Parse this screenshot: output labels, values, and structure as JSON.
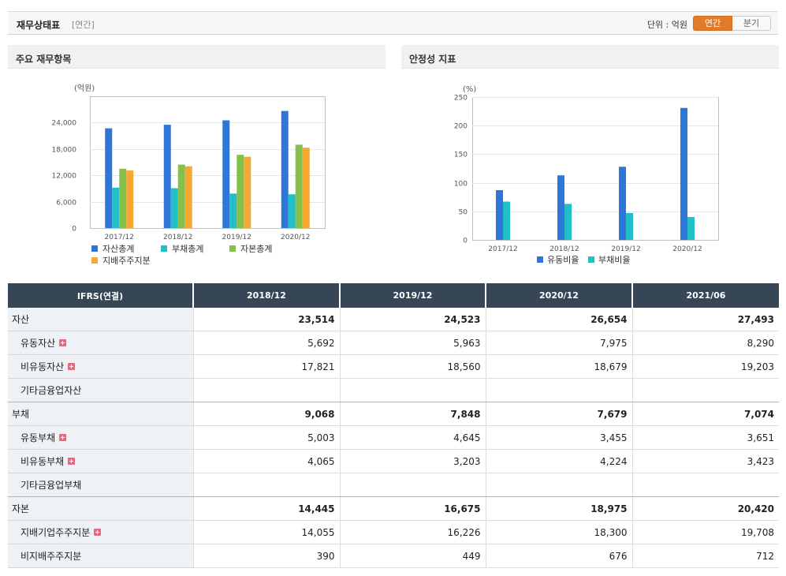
{
  "header": {
    "title": "재무상태표",
    "subtitle": "[연간]",
    "unit_label": "단위 : 억원",
    "toggle_annual": "연간",
    "toggle_quarter": "분기"
  },
  "left_panel": {
    "title": "주요 재무항목"
  },
  "right_panel": {
    "title": "안정성 지표"
  },
  "chart_data": [
    {
      "type": "bar",
      "ylabel": "(억원)",
      "categories": [
        "2017/12",
        "2018/12",
        "2019/12",
        "2020/12"
      ],
      "ylim": [
        0,
        30000
      ],
      "yticks": [
        0,
        6000,
        12000,
        18000,
        24000
      ],
      "ytick_labels": [
        "0",
        "6,000",
        "12,000",
        "18,000",
        "24,000"
      ],
      "series": [
        {
          "name": "자산총계",
          "color": "#2f77d6",
          "values": [
            22700,
            23514,
            24523,
            26654
          ]
        },
        {
          "name": "부채총계",
          "color": "#22bfc9",
          "values": [
            9200,
            9068,
            7848,
            7679
          ]
        },
        {
          "name": "자본총계",
          "color": "#86c04b",
          "values": [
            13500,
            14445,
            16675,
            18975
          ]
        },
        {
          "name": "지배주주지분",
          "color": "#f5a833",
          "values": [
            13100,
            14055,
            16226,
            18300
          ]
        }
      ]
    },
    {
      "type": "bar",
      "ylabel": "(%)",
      "categories": [
        "2017/12",
        "2018/12",
        "2019/12",
        "2020/12"
      ],
      "ylim": [
        0,
        250
      ],
      "yticks": [
        0,
        50,
        100,
        150,
        200,
        250
      ],
      "ytick_labels": [
        "0",
        "50",
        "100",
        "150",
        "200",
        "250"
      ],
      "series": [
        {
          "name": "유동비율",
          "color": "#2f77d6",
          "values": [
            87,
            113,
            128,
            231
          ]
        },
        {
          "name": "부채비율",
          "color": "#22bfc9",
          "values": [
            67,
            63,
            47,
            40
          ]
        }
      ]
    }
  ],
  "table": {
    "header_label": "IFRS(연결)",
    "columns": [
      "2018/12",
      "2019/12",
      "2020/12",
      "2021/06"
    ],
    "rows": [
      {
        "label": "자산",
        "level": 0,
        "expand": false,
        "values": [
          "23,514",
          "24,523",
          "26,654",
          "27,493"
        ]
      },
      {
        "label": "유동자산",
        "level": 1,
        "expand": true,
        "values": [
          "5,692",
          "5,963",
          "7,975",
          "8,290"
        ]
      },
      {
        "label": "비유동자산",
        "level": 1,
        "expand": true,
        "values": [
          "17,821",
          "18,560",
          "18,679",
          "19,203"
        ]
      },
      {
        "label": "기타금융업자산",
        "level": 1,
        "expand": false,
        "values": [
          "",
          "",
          "",
          ""
        ]
      },
      {
        "label": "부채",
        "level": 0,
        "expand": false,
        "values": [
          "9,068",
          "7,848",
          "7,679",
          "7,074"
        ]
      },
      {
        "label": "유동부채",
        "level": 1,
        "expand": true,
        "values": [
          "5,003",
          "4,645",
          "3,455",
          "3,651"
        ]
      },
      {
        "label": "비유동부채",
        "level": 1,
        "expand": true,
        "values": [
          "4,065",
          "3,203",
          "4,224",
          "3,423"
        ]
      },
      {
        "label": "기타금융업부채",
        "level": 1,
        "expand": false,
        "values": [
          "",
          "",
          "",
          ""
        ]
      },
      {
        "label": "자본",
        "level": 0,
        "expand": false,
        "values": [
          "14,445",
          "16,675",
          "18,975",
          "20,420"
        ]
      },
      {
        "label": "지배기업주주지분",
        "level": 1,
        "expand": true,
        "values": [
          "14,055",
          "16,226",
          "18,300",
          "19,708"
        ]
      },
      {
        "label": "비지배주주지분",
        "level": 1,
        "expand": false,
        "values": [
          "390",
          "449",
          "676",
          "712"
        ]
      }
    ]
  }
}
